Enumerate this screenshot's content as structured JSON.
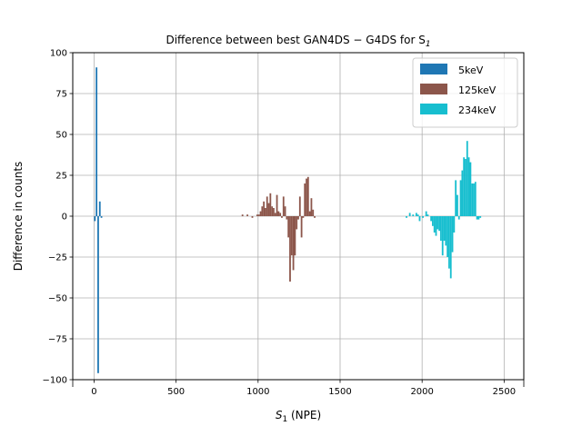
{
  "chart_data": {
    "type": "bar",
    "title": "Difference between best GAN4DS − G4DS for S",
    "title_sub": "1",
    "xlabel": "S",
    "xlabel_sub": "1",
    "xlabel_unit": " (NPE)",
    "ylabel": "Difference in counts",
    "xlim": [
      -130,
      2620
    ],
    "ylim": [
      -100,
      100
    ],
    "xticks": [
      0,
      500,
      1000,
      1500,
      2000,
      2500
    ],
    "xtick_labels": [
      "0",
      "500",
      "1000",
      "1500",
      "2000",
      "2500"
    ],
    "yticks": [
      100,
      75,
      50,
      25,
      0,
      -25,
      -50,
      -75,
      -100
    ],
    "ytick_labels": [
      "100",
      "75",
      "50",
      "25",
      "0",
      "−25",
      "−50",
      "−75",
      "−100"
    ],
    "grid": true,
    "legend_position": "top-right",
    "bin_width": 10,
    "series": [
      {
        "name": "5keV",
        "color": "#1f77b4",
        "bins": [
          [
            0,
            -3
          ],
          [
            10,
            91
          ],
          [
            20,
            -96
          ],
          [
            30,
            9
          ],
          [
            40,
            -1
          ]
        ]
      },
      {
        "name": "125keV",
        "color": "#8c564b",
        "bins": [
          [
            900,
            1
          ],
          [
            930,
            1
          ],
          [
            960,
            -1
          ],
          [
            990,
            1
          ],
          [
            1000,
            1
          ],
          [
            1010,
            3
          ],
          [
            1020,
            6
          ],
          [
            1030,
            9
          ],
          [
            1040,
            5
          ],
          [
            1050,
            12
          ],
          [
            1060,
            8
          ],
          [
            1070,
            14
          ],
          [
            1080,
            6
          ],
          [
            1090,
            5
          ],
          [
            1100,
            2
          ],
          [
            1110,
            13
          ],
          [
            1120,
            3
          ],
          [
            1130,
            2
          ],
          [
            1140,
            -1
          ],
          [
            1150,
            12
          ],
          [
            1160,
            6
          ],
          [
            1170,
            -2
          ],
          [
            1180,
            -13
          ],
          [
            1190,
            -40
          ],
          [
            1200,
            -24
          ],
          [
            1210,
            -33
          ],
          [
            1220,
            -24
          ],
          [
            1230,
            -8
          ],
          [
            1240,
            -2
          ],
          [
            1250,
            12
          ],
          [
            1260,
            -13
          ],
          [
            1270,
            -1
          ],
          [
            1280,
            20
          ],
          [
            1290,
            23
          ],
          [
            1300,
            24
          ],
          [
            1310,
            3
          ],
          [
            1320,
            11
          ],
          [
            1330,
            4
          ],
          [
            1340,
            -1
          ]
        ]
      },
      {
        "name": "234keV",
        "color": "#17becf",
        "bins": [
          [
            1900,
            -1
          ],
          [
            1920,
            2
          ],
          [
            1940,
            1
          ],
          [
            1960,
            2
          ],
          [
            1970,
            1
          ],
          [
            1980,
            -3
          ],
          [
            2000,
            -1
          ],
          [
            2020,
            3
          ],
          [
            2030,
            1
          ],
          [
            2050,
            -3
          ],
          [
            2060,
            -6
          ],
          [
            2070,
            -10
          ],
          [
            2080,
            -12
          ],
          [
            2090,
            -8
          ],
          [
            2100,
            -9
          ],
          [
            2110,
            -15
          ],
          [
            2120,
            -24
          ],
          [
            2130,
            -15
          ],
          [
            2140,
            -18
          ],
          [
            2150,
            -25
          ],
          [
            2160,
            -32
          ],
          [
            2170,
            -38
          ],
          [
            2180,
            -22
          ],
          [
            2190,
            -10
          ],
          [
            2200,
            22
          ],
          [
            2210,
            13
          ],
          [
            2220,
            -2
          ],
          [
            2230,
            22
          ],
          [
            2240,
            28
          ],
          [
            2250,
            36
          ],
          [
            2260,
            35
          ],
          [
            2270,
            46
          ],
          [
            2280,
            36
          ],
          [
            2290,
            33
          ],
          [
            2300,
            20
          ],
          [
            2310,
            20
          ],
          [
            2320,
            21
          ],
          [
            2330,
            -2
          ],
          [
            2340,
            -2
          ],
          [
            2350,
            -1
          ]
        ]
      }
    ]
  }
}
